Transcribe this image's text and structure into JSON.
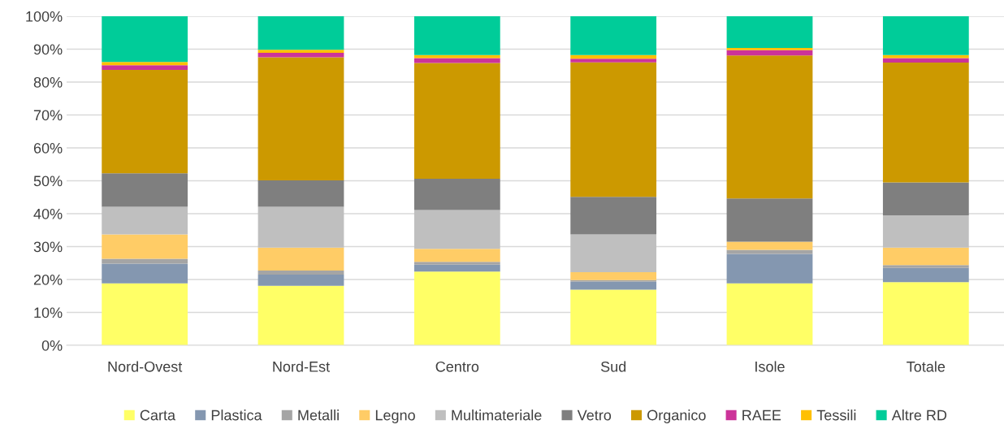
{
  "chart_data": {
    "type": "bar",
    "stacked": true,
    "categories": [
      "Nord-Ovest",
      "Nord-Est",
      "Centro",
      "Sud",
      "Isole",
      "Totale"
    ],
    "series": [
      {
        "name": "Carta",
        "color": "#ffff66",
        "values": [
          18.8,
          18.1,
          22.4,
          16.9,
          18.8,
          19.2
        ]
      },
      {
        "name": "Plastica",
        "color": "#8497b0",
        "values": [
          6.0,
          3.4,
          2.1,
          2.4,
          9.0,
          4.3
        ]
      },
      {
        "name": "Metalli",
        "color": "#a5a5a5",
        "values": [
          1.5,
          1.2,
          0.9,
          0.5,
          1.2,
          0.9
        ]
      },
      {
        "name": "Legno",
        "color": "#ffcc66",
        "values": [
          7.4,
          7.0,
          3.9,
          2.4,
          2.5,
          5.3
        ]
      },
      {
        "name": "Multimateriale",
        "color": "#bfbfbf",
        "values": [
          8.4,
          12.4,
          11.8,
          11.5,
          0,
          9.8
        ]
      },
      {
        "name": "Vetro",
        "color": "#7f7f7f",
        "values": [
          10.2,
          8.0,
          9.5,
          11.4,
          13.1,
          10.0
        ]
      },
      {
        "name": "Organico",
        "color": "#cc9900",
        "values": [
          31.4,
          37.4,
          35.2,
          40.9,
          43.5,
          36.4
        ]
      },
      {
        "name": "RAEE",
        "color": "#cc3399",
        "values": [
          1.4,
          1.4,
          1.5,
          1.1,
          1.6,
          1.4
        ]
      },
      {
        "name": "Tessili",
        "color": "#ffc000",
        "values": [
          1.0,
          0.9,
          0.9,
          1.1,
          0.7,
          0.9
        ]
      },
      {
        "name": "Altre RD",
        "color": "#00cc99",
        "values": [
          13.9,
          10.2,
          11.8,
          11.8,
          9.6,
          11.8
        ]
      }
    ],
    "ylim": [
      0,
      100
    ],
    "yticks": [
      {
        "value": 0,
        "label": "0%"
      },
      {
        "value": 10,
        "label": "10%"
      },
      {
        "value": 20,
        "label": "20%"
      },
      {
        "value": 30,
        "label": "30%"
      },
      {
        "value": 40,
        "label": "40%"
      },
      {
        "value": 50,
        "label": "50%"
      },
      {
        "value": 60,
        "label": "60%"
      },
      {
        "value": 70,
        "label": "70%"
      },
      {
        "value": 80,
        "label": "80%"
      },
      {
        "value": 90,
        "label": "90%"
      },
      {
        "value": 100,
        "label": "100%"
      }
    ],
    "grid": "y",
    "legend": "bottom"
  }
}
